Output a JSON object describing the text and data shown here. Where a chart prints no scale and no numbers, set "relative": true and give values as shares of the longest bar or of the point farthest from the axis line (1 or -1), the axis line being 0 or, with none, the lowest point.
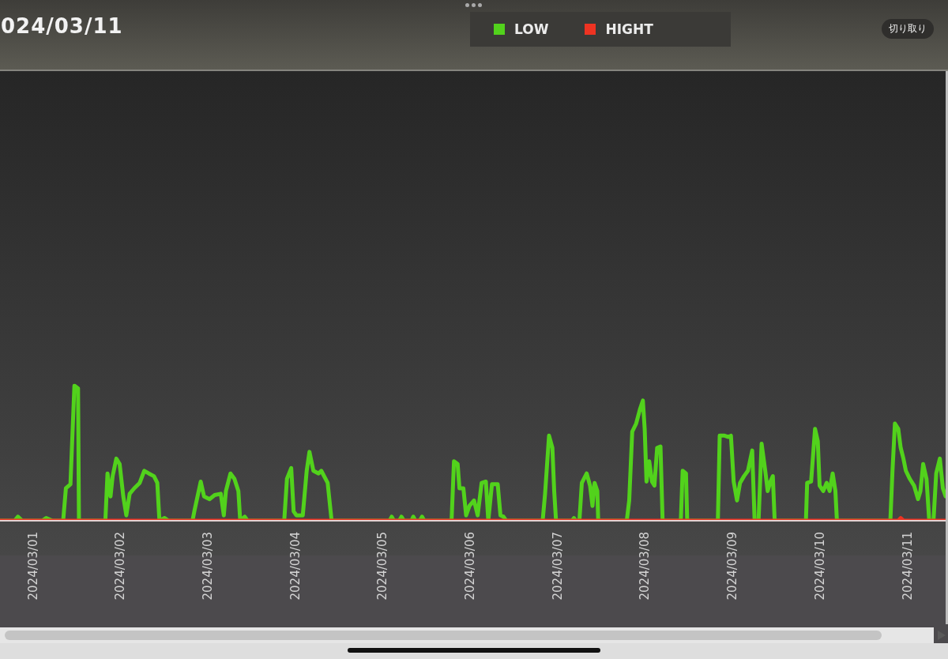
{
  "chart_data": {
    "type": "line",
    "title": "024/03/11",
    "annotations": [
      "切り取り"
    ],
    "relative": true,
    "xlim": [
      "2024-02-29T15:00",
      "2024-03-11T10:30"
    ],
    "xticks": [
      {
        "value": "2024-03-01",
        "label": "2024/03/01"
      },
      {
        "value": "2024-03-02",
        "label": "2024/03/02"
      },
      {
        "value": "2024-03-03",
        "label": "2024/03/03"
      },
      {
        "value": "2024-03-04",
        "label": "2024/03/04"
      },
      {
        "value": "2024-03-05",
        "label": "2024/03/05"
      },
      {
        "value": "2024-03-06",
        "label": "2024/03/06"
      },
      {
        "value": "2024-03-07",
        "label": "2024/03/07"
      },
      {
        "value": "2024-03-08",
        "label": "2024/03/08"
      },
      {
        "value": "2024-03-09",
        "label": "2024/03/09"
      },
      {
        "value": "2024-03-10",
        "label": "2024/03/10"
      },
      {
        "value": "2024-03-11",
        "label": "2024/03/11"
      }
    ],
    "legend": "top",
    "marker": "none",
    "line_style": "solid",
    "series": [
      {
        "name": "LOW",
        "color": "#52d21c",
        "x": [
          "2024-02-29T15:00",
          "2024-02-29T19:00",
          "2024-02-29T19:55",
          "2024-02-29T21:05",
          "2024-03-01T02:35",
          "2024-03-01T03:40",
          "2024-03-01T05:25",
          "2024-03-01T08:20",
          "2024-03-01T09:05",
          "2024-03-01T10:20",
          "2024-03-01T11:25",
          "2024-03-01T12:25",
          "2024-03-01T12:40",
          "2024-03-01T19:55",
          "2024-03-01T20:30",
          "2024-03-01T21:20",
          "2024-03-01T21:55",
          "2024-03-01T22:55",
          "2024-03-01T23:50",
          "2024-03-02T00:50",
          "2024-03-02T01:40",
          "2024-03-02T02:35",
          "2024-03-02T03:50",
          "2024-03-02T05:20",
          "2024-03-02T06:35",
          "2024-03-02T07:50",
          "2024-03-02T09:15",
          "2024-03-02T10:10",
          "2024-03-02T10:45",
          "2024-03-02T12:10",
          "2024-03-02T13:15",
          "2024-03-02T19:50",
          "2024-03-02T20:20",
          "2024-03-02T22:05",
          "2024-03-02T23:00",
          "2024-03-03T00:30",
          "2024-03-03T01:55",
          "2024-03-03T03:35",
          "2024-03-03T04:25",
          "2024-03-03T05:00",
          "2024-03-03T06:15",
          "2024-03-03T07:20",
          "2024-03-03T08:25",
          "2024-03-03T08:55",
          "2024-03-03T10:10",
          "2024-03-03T10:55",
          "2024-03-03T21:00",
          "2024-03-03T21:45",
          "2024-03-03T22:55",
          "2024-03-03T23:35",
          "2024-03-04T00:20",
          "2024-03-04T02:05",
          "2024-03-04T03:10",
          "2024-03-04T03:55",
          "2024-03-04T05:00",
          "2024-03-04T06:25",
          "2024-03-04T07:10",
          "2024-03-04T08:55",
          "2024-03-04T10:00",
          "2024-03-05T01:55",
          "2024-03-05T02:30",
          "2024-03-05T03:05",
          "2024-03-05T04:35",
          "2024-03-05T05:10",
          "2024-03-05T05:50",
          "2024-03-05T07:55",
          "2024-03-05T08:25",
          "2024-03-05T09:00",
          "2024-03-05T10:10",
          "2024-03-05T10:50",
          "2024-03-05T11:25",
          "2024-03-05T18:55",
          "2024-03-05T19:35",
          "2024-03-05T20:35",
          "2024-03-05T21:05",
          "2024-03-05T22:10",
          "2024-03-05T22:55",
          "2024-03-05T23:50",
          "2024-03-06T01:05",
          "2024-03-06T02:05",
          "2024-03-06T03:10",
          "2024-03-06T04:20",
          "2024-03-06T05:00",
          "2024-03-06T06:00",
          "2024-03-06T07:35",
          "2024-03-06T08:20",
          "2024-03-06T09:10",
          "2024-03-06T09:55",
          "2024-03-06T19:55",
          "2024-03-06T20:35",
          "2024-03-06T21:40",
          "2024-03-06T22:35",
          "2024-03-06T23:05",
          "2024-03-06T23:35",
          "2024-03-07T04:00",
          "2024-03-07T04:30",
          "2024-03-07T05:00",
          "2024-03-07T06:00",
          "2024-03-07T06:40",
          "2024-03-07T08:00",
          "2024-03-07T08:55",
          "2024-03-07T09:35",
          "2024-03-07T10:10",
          "2024-03-07T10:55",
          "2024-03-07T11:10",
          "2024-03-07T19:00",
          "2024-03-07T19:40",
          "2024-03-07T20:30",
          "2024-03-07T21:35",
          "2024-03-07T22:40",
          "2024-03-07T23:25",
          "2024-03-07T23:55",
          "2024-03-08T00:25",
          "2024-03-08T01:10",
          "2024-03-08T01:55",
          "2024-03-08T02:35",
          "2024-03-08T03:20",
          "2024-03-08T04:15",
          "2024-03-08T04:50",
          "2024-03-08T09:50",
          "2024-03-08T10:20",
          "2024-03-08T11:15",
          "2024-03-08T11:35",
          "2024-03-08T20:00",
          "2024-03-08T20:30",
          "2024-03-08T21:50",
          "2024-03-08T22:55",
          "2024-03-08T23:35",
          "2024-03-09T00:20",
          "2024-03-09T01:15",
          "2024-03-09T02:05",
          "2024-03-09T03:10",
          "2024-03-09T04:15",
          "2024-03-09T05:25",
          "2024-03-09T06:05",
          "2024-03-09T07:10",
          "2024-03-09T08:00",
          "2024-03-09T09:00",
          "2024-03-09T09:40",
          "2024-03-09T10:25",
          "2024-03-09T11:05",
          "2024-03-09T11:35",
          "2024-03-09T20:10",
          "2024-03-09T20:30",
          "2024-03-09T21:35",
          "2024-03-09T22:40",
          "2024-03-09T23:25",
          "2024-03-09T23:55",
          "2024-03-10T00:55",
          "2024-03-10T01:50",
          "2024-03-10T02:40",
          "2024-03-10T03:30",
          "2024-03-10T04:15",
          "2024-03-10T04:40",
          "2024-03-10T19:20",
          "2024-03-10T19:55",
          "2024-03-10T20:35",
          "2024-03-10T21:30",
          "2024-03-10T22:10",
          "2024-03-10T22:55",
          "2024-03-10T23:35",
          "2024-03-11T00:40",
          "2024-03-11T01:50",
          "2024-03-11T02:55",
          "2024-03-11T03:35",
          "2024-03-11T04:20",
          "2024-03-11T05:15",
          "2024-03-11T06:00",
          "2024-03-11T07:10",
          "2024-03-11T07:55",
          "2024-03-11T08:55",
          "2024-03-11T09:45",
          "2024-03-11T10:30"
        ],
        "values": [
          0,
          0,
          0.03,
          0,
          0,
          0.02,
          0,
          0,
          0.24,
          0.27,
          1,
          0.98,
          0,
          0,
          0.35,
          0.18,
          0.33,
          0.46,
          0.42,
          0.18,
          0.04,
          0.2,
          0.24,
          0.28,
          0.37,
          0.35,
          0.33,
          0.28,
          0,
          0.02,
          0,
          0,
          0.07,
          0.29,
          0.18,
          0.16,
          0.19,
          0.2,
          0.04,
          0.22,
          0.35,
          0.31,
          0.22,
          0,
          0.03,
          0,
          0,
          0.31,
          0.39,
          0.07,
          0.04,
          0.04,
          0.37,
          0.51,
          0.37,
          0.35,
          0.37,
          0.28,
          0,
          0,
          0.03,
          0,
          0,
          0.03,
          0,
          0,
          0.03,
          0,
          0,
          0.03,
          0,
          0,
          0.44,
          0.42,
          0.24,
          0.24,
          0.04,
          0.11,
          0.15,
          0.04,
          0.28,
          0.29,
          0,
          0.27,
          0.27,
          0.04,
          0.03,
          0,
          0,
          0.2,
          0.63,
          0.54,
          0.22,
          0,
          0,
          0.02,
          0,
          0,
          0.28,
          0.35,
          0.26,
          0.11,
          0.28,
          0.22,
          0,
          0,
          0.15,
          0.66,
          0.72,
          0.83,
          0.89,
          0.68,
          0.29,
          0.44,
          0.29,
          0.26,
          0.54,
          0.55,
          0,
          0,
          0.37,
          0.35,
          0,
          0,
          0.63,
          0.63,
          0.62,
          0.63,
          0.29,
          0.15,
          0.28,
          0.33,
          0.37,
          0.52,
          0,
          0,
          0.57,
          0.37,
          0.22,
          0.29,
          0.33,
          0,
          0,
          0.28,
          0.29,
          0.68,
          0.59,
          0.26,
          0.22,
          0.28,
          0.22,
          0.35,
          0.22,
          0,
          0,
          0.37,
          0.72,
          0.68,
          0.54,
          0.46,
          0.37,
          0.31,
          0.26,
          0.16,
          0.22,
          0.42,
          0.31,
          0,
          0,
          0.35,
          0.46,
          0.24,
          0.18
        ]
      },
      {
        "name": "HIGHT",
        "color": "#ee3322",
        "x": [
          "2024-02-29T15:00",
          "2024-03-01T12:00",
          "2024-03-03T00:00",
          "2024-03-05T00:00",
          "2024-03-07T00:00",
          "2024-03-09T00:00",
          "2024-03-10T21:30",
          "2024-03-10T22:10",
          "2024-03-10T23:00",
          "2024-03-11T10:30"
        ],
        "values": [
          0,
          0,
          0,
          0,
          0,
          0,
          0,
          0.02,
          0,
          0
        ]
      }
    ]
  }
}
